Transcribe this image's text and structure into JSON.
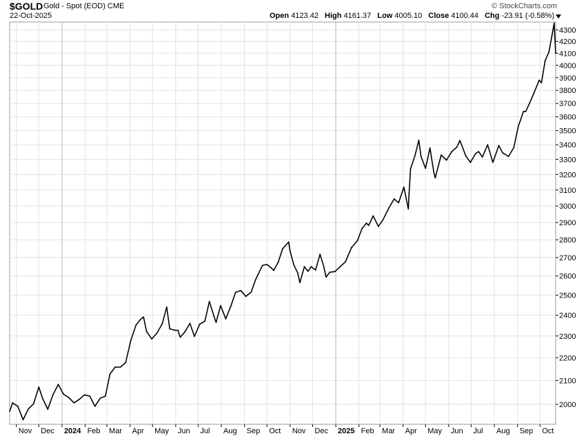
{
  "header": {
    "symbol": "$GOLD",
    "description": "Gold - Spot (EOD) CME",
    "date": "22-Oct-2025",
    "brand": "© StockCharts.com",
    "open_label": "Open",
    "open_value": "4123.42",
    "high_label": "High",
    "high_value": "4161.37",
    "low_label": "Low",
    "low_value": "4005.10",
    "close_label": "Close",
    "close_value": "4100.44",
    "chg_label": "Chg",
    "chg_value": "-23.91 (-0.58%)"
  },
  "chart_data": {
    "type": "line",
    "title": "$GOLD Gold - Spot (EOD) CME",
    "xlabel": "",
    "ylabel": "",
    "ylim": [
      1920,
      4370
    ],
    "y_ticks": [
      2000,
      2100,
      2200,
      2300,
      2400,
      2500,
      2600,
      2700,
      2800,
      2900,
      3000,
      3100,
      3200,
      3300,
      3400,
      3500,
      3600,
      3700,
      3800,
      3900,
      4000,
      4100,
      4200,
      4300
    ],
    "y_scale": "log",
    "grid": true,
    "x_tick_labels": [
      "Nov",
      "Dec",
      "2024",
      "Feb",
      "Mar",
      "Apr",
      "May",
      "Jun",
      "Jul",
      "Aug",
      "Sep",
      "Oct",
      "Nov",
      "Dec",
      "2025",
      "Feb",
      "Mar",
      "Apr",
      "May",
      "Jun",
      "Jul",
      "Aug",
      "Sep",
      "Oct"
    ],
    "x_ticks": [
      "2023-11-01",
      "2023-12-01",
      "2024-01-01",
      "2024-02-01",
      "2024-03-01",
      "2024-04-01",
      "2024-05-01",
      "2024-06-01",
      "2024-07-01",
      "2024-08-01",
      "2024-09-01",
      "2024-10-01",
      "2024-11-01",
      "2024-12-01",
      "2025-01-01",
      "2025-02-01",
      "2025-03-01",
      "2025-04-01",
      "2025-05-01",
      "2025-06-01",
      "2025-07-01",
      "2025-08-01",
      "2025-09-01",
      "2025-10-01"
    ],
    "x_range": [
      "2023-10-23",
      "2025-10-22"
    ],
    "series": [
      {
        "color": "#000000",
        "points": [
          [
            "2023-10-23",
            1972
          ],
          [
            "2023-10-27",
            2006
          ],
          [
            "2023-11-03",
            1992
          ],
          [
            "2023-11-10",
            1938
          ],
          [
            "2023-11-17",
            1981
          ],
          [
            "2023-11-24",
            2002
          ],
          [
            "2023-12-01",
            2072
          ],
          [
            "2023-12-06",
            2025
          ],
          [
            "2023-12-13",
            1980
          ],
          [
            "2023-12-20",
            2040
          ],
          [
            "2023-12-27",
            2083
          ],
          [
            "2024-01-03",
            2042
          ],
          [
            "2024-01-10",
            2028
          ],
          [
            "2024-01-17",
            2006
          ],
          [
            "2024-01-24",
            2020
          ],
          [
            "2024-01-31",
            2039
          ],
          [
            "2024-02-07",
            2034
          ],
          [
            "2024-02-14",
            1992
          ],
          [
            "2024-02-21",
            2025
          ],
          [
            "2024-02-28",
            2034
          ],
          [
            "2024-03-05",
            2127
          ],
          [
            "2024-03-12",
            2158
          ],
          [
            "2024-03-19",
            2158
          ],
          [
            "2024-03-26",
            2178
          ],
          [
            "2024-04-02",
            2280
          ],
          [
            "2024-04-09",
            2353
          ],
          [
            "2024-04-16",
            2383
          ],
          [
            "2024-04-19",
            2391
          ],
          [
            "2024-04-23",
            2322
          ],
          [
            "2024-04-30",
            2286
          ],
          [
            "2024-05-07",
            2314
          ],
          [
            "2024-05-14",
            2358
          ],
          [
            "2024-05-20",
            2440
          ],
          [
            "2024-05-24",
            2334
          ],
          [
            "2024-05-31",
            2327
          ],
          [
            "2024-06-04",
            2327
          ],
          [
            "2024-06-07",
            2294
          ],
          [
            "2024-06-13",
            2318
          ],
          [
            "2024-06-20",
            2360
          ],
          [
            "2024-06-26",
            2298
          ],
          [
            "2024-07-03",
            2356
          ],
          [
            "2024-07-10",
            2371
          ],
          [
            "2024-07-16",
            2468
          ],
          [
            "2024-07-22",
            2396
          ],
          [
            "2024-07-25",
            2365
          ],
          [
            "2024-07-31",
            2447
          ],
          [
            "2024-08-07",
            2382
          ],
          [
            "2024-08-14",
            2447
          ],
          [
            "2024-08-20",
            2514
          ],
          [
            "2024-08-27",
            2524
          ],
          [
            "2024-09-03",
            2494
          ],
          [
            "2024-09-10",
            2516
          ],
          [
            "2024-09-16",
            2582
          ],
          [
            "2024-09-25",
            2657
          ],
          [
            "2024-10-01",
            2662
          ],
          [
            "2024-10-07",
            2643
          ],
          [
            "2024-10-10",
            2630
          ],
          [
            "2024-10-16",
            2674
          ],
          [
            "2024-10-22",
            2749
          ],
          [
            "2024-10-30",
            2787
          ],
          [
            "2024-11-01",
            2735
          ],
          [
            "2024-11-06",
            2659
          ],
          [
            "2024-11-11",
            2618
          ],
          [
            "2024-11-14",
            2565
          ],
          [
            "2024-11-20",
            2650
          ],
          [
            "2024-11-25",
            2625
          ],
          [
            "2024-11-29",
            2650
          ],
          [
            "2024-12-05",
            2632
          ],
          [
            "2024-12-11",
            2718
          ],
          [
            "2024-12-16",
            2650
          ],
          [
            "2024-12-19",
            2595
          ],
          [
            "2024-12-24",
            2620
          ],
          [
            "2024-12-31",
            2624
          ],
          [
            "2025-01-07",
            2650
          ],
          [
            "2025-01-14",
            2677
          ],
          [
            "2025-01-22",
            2755
          ],
          [
            "2025-01-30",
            2795
          ],
          [
            "2025-02-05",
            2864
          ],
          [
            "2025-02-11",
            2897
          ],
          [
            "2025-02-14",
            2883
          ],
          [
            "2025-02-20",
            2940
          ],
          [
            "2025-02-27",
            2877
          ],
          [
            "2025-03-05",
            2916
          ],
          [
            "2025-03-13",
            2988
          ],
          [
            "2025-03-20",
            3044
          ],
          [
            "2025-03-26",
            3020
          ],
          [
            "2025-04-02",
            3118
          ],
          [
            "2025-04-08",
            2982
          ],
          [
            "2025-04-09",
            3081
          ],
          [
            "2025-04-11",
            3237
          ],
          [
            "2025-04-17",
            3327
          ],
          [
            "2025-04-22",
            3432
          ],
          [
            "2025-04-25",
            3320
          ],
          [
            "2025-05-01",
            3240
          ],
          [
            "2025-05-07",
            3378
          ],
          [
            "2025-05-12",
            3215
          ],
          [
            "2025-05-14",
            3178
          ],
          [
            "2025-05-22",
            3330
          ],
          [
            "2025-05-29",
            3295
          ],
          [
            "2025-06-05",
            3352
          ],
          [
            "2025-06-12",
            3385
          ],
          [
            "2025-06-16",
            3430
          ],
          [
            "2025-06-24",
            3322
          ],
          [
            "2025-06-30",
            3280
          ],
          [
            "2025-07-07",
            3340
          ],
          [
            "2025-07-11",
            3353
          ],
          [
            "2025-07-16",
            3316
          ],
          [
            "2025-07-23",
            3400
          ],
          [
            "2025-07-30",
            3280
          ],
          [
            "2025-08-07",
            3395
          ],
          [
            "2025-08-12",
            3345
          ],
          [
            "2025-08-20",
            3320
          ],
          [
            "2025-08-27",
            3380
          ],
          [
            "2025-09-02",
            3530
          ],
          [
            "2025-09-09",
            3640
          ],
          [
            "2025-09-12",
            3640
          ],
          [
            "2025-09-17",
            3700
          ],
          [
            "2025-09-23",
            3780
          ],
          [
            "2025-09-30",
            3880
          ],
          [
            "2025-10-03",
            3860
          ],
          [
            "2025-10-08",
            4040
          ],
          [
            "2025-10-13",
            4110
          ],
          [
            "2025-10-17",
            4250
          ],
          [
            "2025-10-20",
            4360
          ],
          [
            "2025-10-22",
            4100
          ]
        ]
      }
    ]
  }
}
